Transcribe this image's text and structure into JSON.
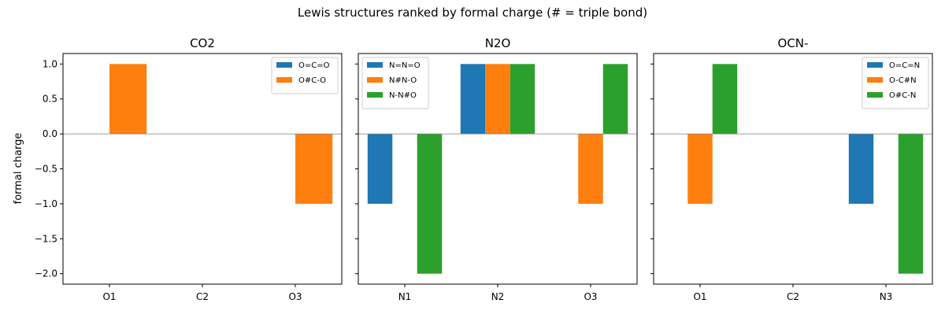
{
  "figure": {
    "suptitle": "Lewis structures ranked by formal charge (# = triple bond)",
    "ylabel": "formal charge"
  },
  "chart_data": [
    {
      "type": "bar",
      "title": "CO2",
      "categories": [
        "O1",
        "C2",
        "O3"
      ],
      "ylim": [
        -2.15,
        1.15
      ],
      "yticks": [
        1.0,
        0.5,
        0.0,
        -0.5,
        -1.0,
        -1.5,
        -2.0
      ],
      "legend_position": "top-right",
      "series": [
        {
          "name": "O=C=O",
          "color": "#1f77b4",
          "values": [
            0,
            0,
            0
          ]
        },
        {
          "name": "O#C-O",
          "color": "#ff7f0e",
          "values": [
            1,
            0,
            -1
          ]
        }
      ]
    },
    {
      "type": "bar",
      "title": "N2O",
      "categories": [
        "N1",
        "N2",
        "O3"
      ],
      "ylim": [
        -2.15,
        1.15
      ],
      "yticks": [
        1.0,
        0.5,
        0.0,
        -0.5,
        -1.0,
        -1.5,
        -2.0
      ],
      "legend_position": "top-left",
      "series": [
        {
          "name": "N=N=O",
          "color": "#1f77b4",
          "values": [
            -1,
            1,
            0
          ]
        },
        {
          "name": "N#N-O",
          "color": "#ff7f0e",
          "values": [
            0,
            1,
            -1
          ]
        },
        {
          "name": "N-N#O",
          "color": "#2ca02c",
          "values": [
            -2,
            1,
            1
          ]
        }
      ]
    },
    {
      "type": "bar",
      "title": "OCN-",
      "categories": [
        "O1",
        "C2",
        "N3"
      ],
      "ylim": [
        -2.15,
        1.15
      ],
      "yticks": [
        1.0,
        0.5,
        0.0,
        -0.5,
        -1.0,
        -1.5,
        -2.0
      ],
      "legend_position": "top-right",
      "series": [
        {
          "name": "O=C=N",
          "color": "#1f77b4",
          "values": [
            0,
            0,
            -1
          ]
        },
        {
          "name": "O-C#N",
          "color": "#ff7f0e",
          "values": [
            -1,
            0,
            0
          ]
        },
        {
          "name": "O#C-N",
          "color": "#2ca02c",
          "values": [
            1,
            0,
            -2
          ]
        }
      ]
    }
  ]
}
